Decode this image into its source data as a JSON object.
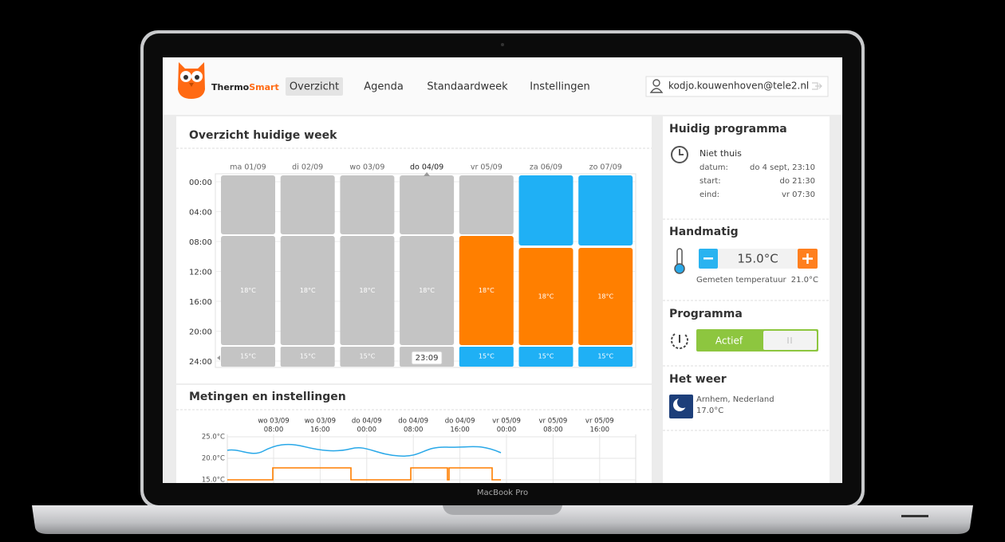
{
  "header": {
    "logo": [
      "Thermo",
      "Smart"
    ],
    "nav": [
      "Overzicht",
      "Agenda",
      "Standaardweek",
      "Instellingen"
    ],
    "user": "kodjo.kouwenhoven@tele2.nl"
  },
  "week": {
    "title": "Overzicht huidige week",
    "times": [
      "00:00",
      "04:00",
      "08:00",
      "12:00",
      "16:00",
      "20:00",
      "24:00"
    ],
    "days": [
      {
        "label": "ma 01/09",
        "temps": [
          "18°C",
          "15°C"
        ]
      },
      {
        "label": "di 02/09",
        "temps": [
          "18°C",
          "15°C"
        ]
      },
      {
        "label": "wo 03/09",
        "temps": [
          "18°C",
          "15°C"
        ]
      },
      {
        "label": "do 04/09",
        "temps": [
          "18°C",
          "15°C"
        ]
      },
      {
        "label": "vr 05/09",
        "temps": [
          "18°C",
          "15°C"
        ]
      },
      {
        "label": "za 06/09",
        "temps": [
          "18°C",
          "15°C"
        ]
      },
      {
        "label": "zo 07/09",
        "temps": [
          "18°C",
          "15°C"
        ]
      }
    ],
    "now": "23:09"
  },
  "metingen": {
    "title": "Metingen en instellingen",
    "x_labels": [
      [
        "wo 03/09",
        "08:00"
      ],
      [
        "wo 03/09",
        "16:00"
      ],
      [
        "do 04/09",
        "00:00"
      ],
      [
        "do 04/09",
        "08:00"
      ],
      [
        "do 04/09",
        "16:00"
      ],
      [
        "vr 05/09",
        "00:00"
      ],
      [
        "vr 05/09",
        "08:00"
      ],
      [
        "vr 05/09",
        "16:00"
      ]
    ],
    "y_labels": [
      "25.0°C",
      "20.0°C",
      "15.0°C"
    ]
  },
  "sidebar": {
    "program": {
      "title": "Huidig programma",
      "name": "Niet thuis",
      "rows": [
        [
          "datum:",
          "do 4 sept, 23:10"
        ],
        [
          "start:",
          "do 21:30"
        ],
        [
          "eind:",
          "vr 07:30"
        ]
      ]
    },
    "manual": {
      "title": "Handmatig",
      "setpoint": "15.0°C",
      "measured_label": "Gemeten temperatuur",
      "measured": "21.0°C"
    },
    "programma": {
      "title": "Programma",
      "state": "Actief"
    },
    "weather": {
      "title": "Het weer",
      "place": "Arnhem, Nederland",
      "temp": "17.0°C"
    }
  },
  "laptop_label": "MacBook Pro"
}
